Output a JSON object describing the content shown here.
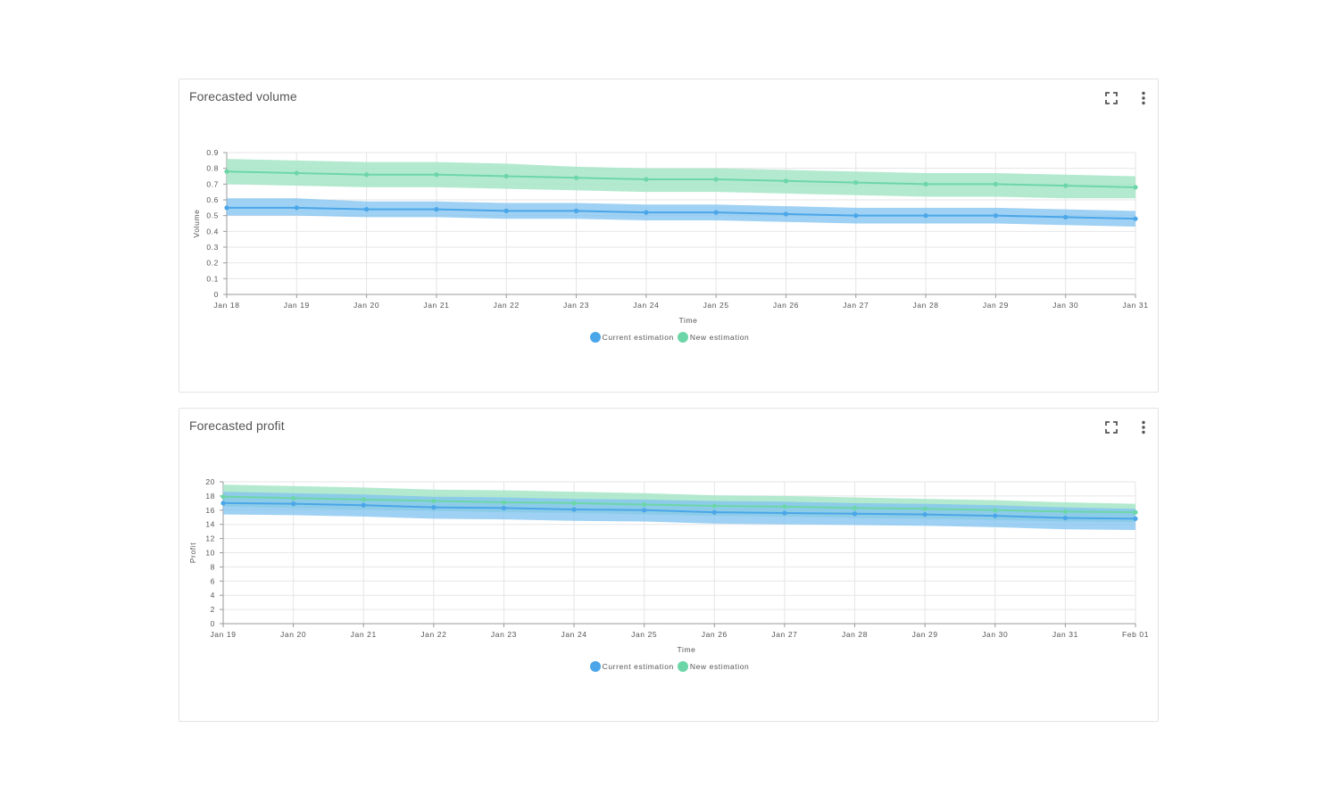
{
  "colors": {
    "current": "#4aa6e8",
    "current_band": "#7fc2f0",
    "new": "#6dd6a8",
    "new_band": "#a6e6c7",
    "grid": "#e6e6e6",
    "axis": "#9a9a9a"
  },
  "icons": {
    "expand": "expand-icon",
    "menu": "more-vertical-icon"
  },
  "cards": [
    {
      "title": "Forecasted volume",
      "legend": [
        "Current estimation",
        "New estimation"
      ]
    },
    {
      "title": "Forecasted profit",
      "legend": [
        "Current estimation",
        "New estimation"
      ]
    }
  ],
  "chart_data": [
    {
      "type": "line",
      "title": "Forecasted volume",
      "xlabel": "Time",
      "ylabel": "Volume",
      "x": [
        "Jan 18",
        "Jan 19",
        "Jan 20",
        "Jan 21",
        "Jan 22",
        "Jan 23",
        "Jan 24",
        "Jan 25",
        "Jan 26",
        "Jan 27",
        "Jan 28",
        "Jan 29",
        "Jan 30",
        "Jan 31"
      ],
      "ylim": [
        0,
        0.9
      ],
      "yticks": [
        "0",
        "0.1",
        "0.2",
        "0.3",
        "0.4",
        "0.5",
        "0.6",
        "0.7",
        "0.8",
        "0.9"
      ],
      "grid": true,
      "legend_position": "bottom",
      "series": [
        {
          "name": "Current estimation",
          "values": [
            0.55,
            0.55,
            0.54,
            0.54,
            0.53,
            0.53,
            0.52,
            0.52,
            0.51,
            0.5,
            0.5,
            0.5,
            0.49,
            0.48
          ],
          "lower": [
            0.5,
            0.5,
            0.49,
            0.49,
            0.48,
            0.48,
            0.47,
            0.47,
            0.46,
            0.45,
            0.45,
            0.45,
            0.44,
            0.43
          ],
          "upper": [
            0.61,
            0.61,
            0.59,
            0.59,
            0.58,
            0.58,
            0.57,
            0.57,
            0.56,
            0.55,
            0.55,
            0.55,
            0.54,
            0.53
          ]
        },
        {
          "name": "New estimation",
          "values": [
            0.78,
            0.77,
            0.76,
            0.76,
            0.75,
            0.74,
            0.73,
            0.73,
            0.72,
            0.71,
            0.7,
            0.7,
            0.69,
            0.68
          ],
          "lower": [
            0.7,
            0.69,
            0.68,
            0.68,
            0.67,
            0.66,
            0.65,
            0.65,
            0.64,
            0.63,
            0.62,
            0.62,
            0.61,
            0.61
          ],
          "upper": [
            0.86,
            0.85,
            0.84,
            0.84,
            0.83,
            0.81,
            0.8,
            0.8,
            0.79,
            0.78,
            0.77,
            0.77,
            0.76,
            0.75
          ]
        }
      ]
    },
    {
      "type": "line",
      "title": "Forecasted profit",
      "xlabel": "Time",
      "ylabel": "Profit",
      "x": [
        "Jan 19",
        "Jan 20",
        "Jan 21",
        "Jan 22",
        "Jan 23",
        "Jan 24",
        "Jan 25",
        "Jan 26",
        "Jan 27",
        "Jan 28",
        "Jan 29",
        "Jan 30",
        "Jan 31",
        "Feb 01"
      ],
      "ylim": [
        0,
        20
      ],
      "yticks": [
        "0",
        "2",
        "4",
        "6",
        "8",
        "10",
        "12",
        "14",
        "16",
        "18",
        "20"
      ],
      "grid": true,
      "legend_position": "bottom",
      "series": [
        {
          "name": "Current estimation",
          "values": [
            17.0,
            16.9,
            16.7,
            16.4,
            16.3,
            16.1,
            16.0,
            15.7,
            15.6,
            15.5,
            15.4,
            15.2,
            14.9,
            14.8
          ],
          "lower": [
            15.4,
            15.3,
            15.1,
            14.8,
            14.7,
            14.5,
            14.4,
            14.1,
            14.0,
            13.9,
            13.8,
            13.6,
            13.3,
            13.2
          ],
          "upper": [
            18.6,
            18.4,
            18.2,
            17.9,
            17.8,
            17.6,
            17.5,
            17.3,
            17.2,
            17.0,
            16.9,
            16.7,
            16.4,
            16.2
          ]
        },
        {
          "name": "New estimation",
          "values": [
            17.9,
            17.7,
            17.5,
            17.3,
            17.1,
            17.0,
            16.8,
            16.6,
            16.5,
            16.3,
            16.2,
            16.0,
            15.8,
            15.7
          ],
          "lower": [
            16.5,
            16.3,
            16.1,
            15.9,
            15.7,
            15.6,
            15.4,
            15.2,
            15.1,
            14.9,
            14.8,
            14.6,
            14.4,
            14.3
          ],
          "upper": [
            19.6,
            19.4,
            19.2,
            18.9,
            18.8,
            18.6,
            18.4,
            18.1,
            18.0,
            17.8,
            17.6,
            17.4,
            17.1,
            16.9
          ]
        }
      ]
    }
  ]
}
